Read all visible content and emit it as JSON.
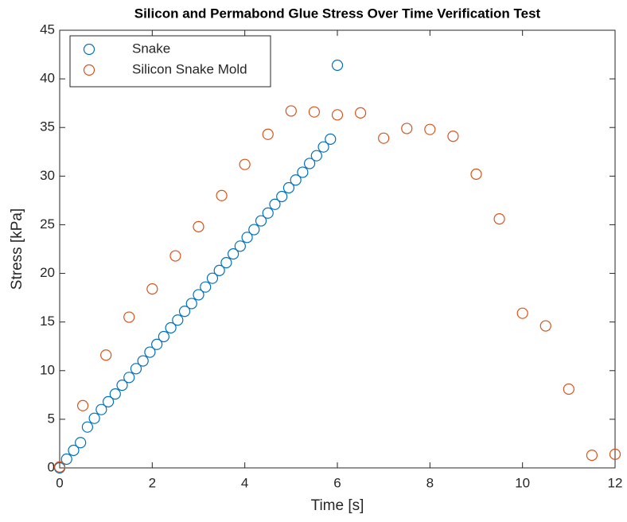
{
  "chart_data": {
    "type": "scatter",
    "title": "Silicon and Permabond Glue Stress Over Time Verification Test",
    "xlabel": "Time [s]",
    "ylabel": "Stress [kPa]",
    "xlim": [
      0,
      12
    ],
    "ylim": [
      0,
      45
    ],
    "xticks": [
      0,
      2,
      4,
      6,
      8,
      10,
      12
    ],
    "yticks": [
      0,
      5,
      10,
      15,
      20,
      25,
      30,
      35,
      40,
      45
    ],
    "legend": "top-left",
    "grid": false,
    "series": [
      {
        "name": "Snake",
        "color": "#0072bd",
        "x": [
          0,
          0.15,
          0.3,
          0.45,
          0.6,
          0.75,
          0.9,
          1.05,
          1.2,
          1.35,
          1.5,
          1.65,
          1.8,
          1.95,
          2.1,
          2.25,
          2.4,
          2.55,
          2.7,
          2.85,
          3,
          3.15,
          3.3,
          3.45,
          3.6,
          3.75,
          3.9,
          4.05,
          4.2,
          4.35,
          4.5,
          4.65,
          4.8,
          4.95,
          5.1,
          5.25,
          5.4,
          5.55,
          5.7,
          5.85,
          6
        ],
        "values": [
          0,
          0.9,
          1.8,
          2.6,
          4.2,
          5.1,
          6.0,
          6.8,
          7.6,
          8.5,
          9.3,
          10.2,
          11.0,
          11.9,
          12.7,
          13.5,
          14.4,
          15.2,
          16.1,
          16.9,
          17.8,
          18.6,
          19.5,
          20.3,
          21.1,
          22.0,
          22.8,
          23.7,
          24.5,
          25.4,
          26.2,
          27.1,
          27.9,
          28.8,
          29.6,
          30.4,
          31.3,
          32.1,
          33.0,
          33.8,
          41.4
        ]
      },
      {
        "name": "Silicon Snake Mold",
        "color": "#d95319",
        "x": [
          0,
          0.5,
          1,
          1.5,
          2,
          2.5,
          3,
          3.5,
          4,
          4.5,
          5,
          5.5,
          6,
          6.5,
          7,
          7.5,
          8,
          8.5,
          9,
          9.5,
          10,
          10.5,
          11,
          11.5,
          12
        ],
        "values": [
          0.1,
          6.4,
          11.6,
          15.5,
          18.4,
          21.8,
          24.8,
          28.0,
          31.2,
          34.3,
          36.7,
          36.6,
          36.3,
          36.5,
          33.9,
          34.9,
          34.8,
          34.1,
          30.2,
          25.6,
          15.9,
          14.6,
          8.1,
          1.3,
          1.4
        ]
      }
    ]
  }
}
